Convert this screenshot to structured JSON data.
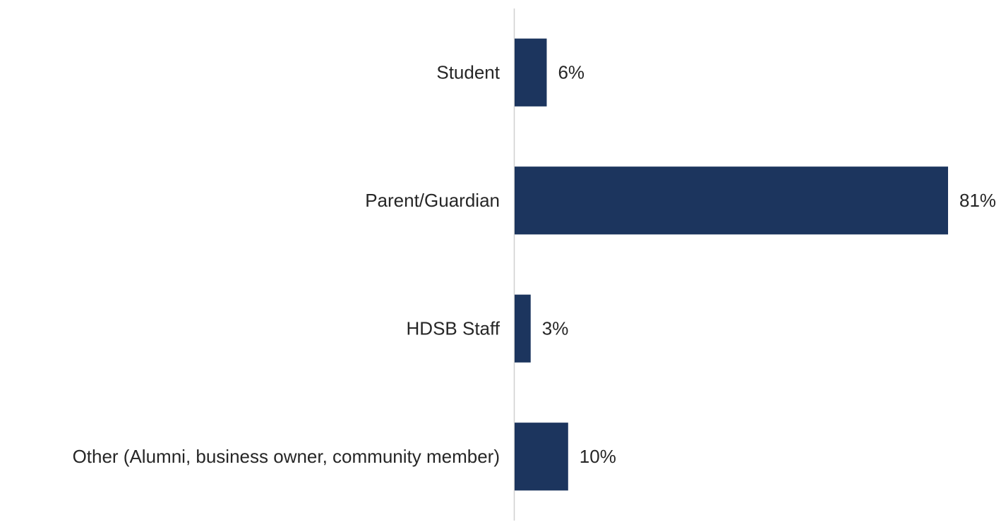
{
  "chart_data": {
    "type": "bar",
    "orientation": "horizontal",
    "categories": [
      "Student",
      "Parent/Guardian",
      "HDSB Staff",
      "Other (Alumni, business owner, community member)"
    ],
    "values": [
      6,
      81,
      3,
      10
    ],
    "value_labels": [
      "6%",
      "81%",
      "3%",
      "10%"
    ],
    "color": "#1c355e",
    "grid": false
  }
}
